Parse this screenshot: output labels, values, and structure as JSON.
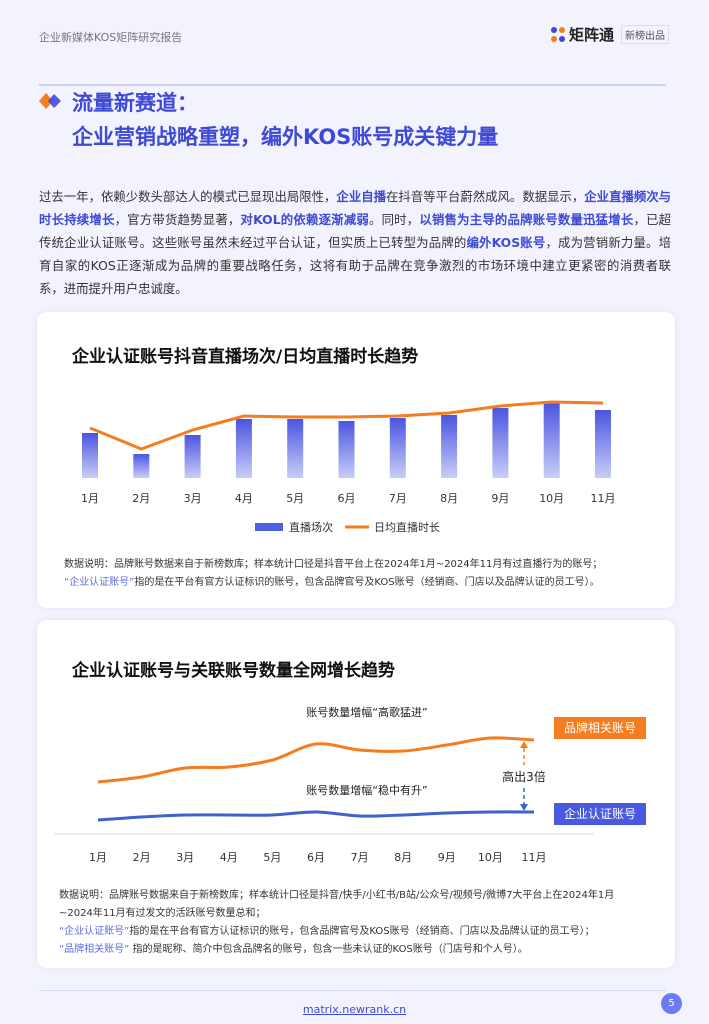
{
  "header": {
    "report_title": "企业新媒体KOS矩阵研究报告",
    "logo_name": "矩阵通",
    "logo_tag": "新榜出品"
  },
  "heading": {
    "line1": "流量新赛道：",
    "line2": "企业营销战略重塑，编外KOS账号成关键力量"
  },
  "intro": [
    {
      "t": "过去一年，依赖少数头部达人的模式已显现出局限性，"
    },
    {
      "t": "企业自播",
      "hl": true
    },
    {
      "t": "在抖音等平台蔚然成风。数据显示，"
    },
    {
      "t": "企业直播频次与时长持续增长",
      "hl": true
    },
    {
      "t": "，官方带货趋势显著，"
    },
    {
      "t": "对KOL的依赖逐渐减弱",
      "hl": true
    },
    {
      "t": "。同时，"
    },
    {
      "t": "以销售为主导的品牌账号数量迅猛增长",
      "hl": true
    },
    {
      "t": "，已超传统企业认证账号。这些账号虽然未经过平台认证，但实质上已转型为品牌的"
    },
    {
      "t": "编外KOS账号",
      "hl": true
    },
    {
      "t": "，成为营销新力量。培育自家的KOS正逐渐成为品牌的重要战略任务，这将有助于品牌在竞争激烈的市场环境中建立更紧密的消费者联系，进而提升用户忠诚度。"
    }
  ],
  "chart_data": [
    {
      "type": "bar",
      "title": "企业认证账号抖音直播场次/日均直播时长趋势",
      "categories": [
        "1月",
        "2月",
        "3月",
        "4月",
        "5月",
        "6月",
        "7月",
        "8月",
        "9月",
        "10月",
        "11月"
      ],
      "series": [
        {
          "name": "直播场次",
          "type": "bar",
          "color": "#4f5fe6",
          "values": [
            45,
            24,
            43,
            59,
            59,
            57,
            60,
            63,
            70,
            75,
            68
          ]
        },
        {
          "name": "日均直播时长",
          "type": "line",
          "color": "#f57c1f",
          "values": [
            50,
            29,
            48,
            62,
            61,
            61,
            62,
            65,
            72,
            76,
            75
          ]
        }
      ],
      "legend": "bottom",
      "grid": false,
      "y_axis_shown": false
    },
    {
      "type": "line",
      "title": "企业认证账号与关联账号数量全网增长趋势",
      "categories": [
        "1月",
        "2月",
        "3月",
        "4月",
        "5月",
        "6月",
        "7月",
        "8月",
        "9月",
        "10月",
        "11月"
      ],
      "series": [
        {
          "name": "品牌相关账号",
          "color": "#f57c1f",
          "values": [
            53,
            58,
            67,
            68,
            75,
            91,
            85,
            84,
            90,
            97,
            95
          ]
        },
        {
          "name": "企业认证账号",
          "color": "#3e63cf",
          "values": [
            15,
            18,
            20,
            20,
            20,
            23,
            19,
            20,
            22,
            23,
            23
          ]
        }
      ],
      "annotations": [
        "账号数量增幅“高歌猛进”",
        "账号数量增幅“稳中有升”",
        "高出3倍"
      ],
      "grid": false,
      "y_axis_shown": false
    }
  ],
  "note1": {
    "line1": "数据说明：品牌账号数据来自于新榜数库；样本统计口径是抖音平台上在2024年1月~2024年11月有过直播行为的账号；",
    "line2_hl": "“企业认证账号”",
    "line2": "指的是在平台有官方认证标识的账号，包含品牌官号及KOS账号（经销商、门店以及品牌认证的员工号）。"
  },
  "note2": {
    "line1": "数据说明：品牌账号数据来自于新榜数库；样本统计口径是抖音/快手/小红书/B站/公众号/视频号/微博7大平台上在2024年1月",
    "line2": "~2024年11月有过发文的活跃账号数量总和；",
    "line3_hl": "“企业认证账号”",
    "line3": "指的是在平台有官方认证标识的账号，包含品牌官号及KOS账号（经销商、门店以及品牌认证的员工号）；",
    "line4_hl": "“品牌相关账号”",
    "line4": " 指的是昵称、简介中包含品牌名的账号，包含一些未认证的KOS账号（门店号和个人号）。"
  },
  "footer": {
    "url": "matrix.newrank.cn",
    "page": "5"
  }
}
